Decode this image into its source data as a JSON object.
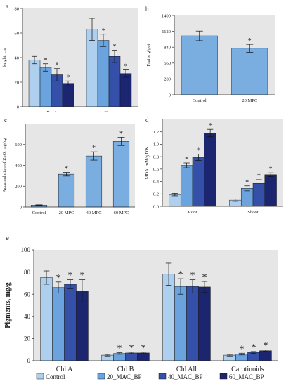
{
  "colors": {
    "control": "#aecfee",
    "mpc20": "#6aa3dd",
    "mpc40": "#3550a8",
    "mpc60": "#1c2670",
    "single": "#7aaee0",
    "axis": "#2a2a2a",
    "plot_bg": "#e6e6e6"
  },
  "chart_data": [
    {
      "panel": "a",
      "type": "bar",
      "ylabel": "lenght, cm",
      "ylim": [
        0,
        80
      ],
      "yticks": [
        0,
        20,
        40,
        60,
        80
      ],
      "categories": [
        "Root",
        "Stem"
      ],
      "series": [
        {
          "values": [
            38,
            63
          ],
          "errors": [
            3,
            9
          ],
          "stars": [
            false,
            false
          ]
        },
        {
          "values": [
            32,
            54
          ],
          "errors": [
            3,
            5
          ],
          "stars": [
            true,
            true
          ]
        },
        {
          "values": [
            26,
            41
          ],
          "errors": [
            5,
            5
          ],
          "stars": [
            true,
            true
          ]
        },
        {
          "values": [
            19,
            27
          ],
          "errors": [
            2,
            3
          ],
          "stars": [
            true,
            true
          ]
        }
      ]
    },
    {
      "panel": "b",
      "type": "bar",
      "ylabel": "Fruits, g/pot",
      "ylim": [
        0,
        1400
      ],
      "yticks": [
        0,
        280,
        560,
        840,
        1120,
        1400
      ],
      "categories": [
        "Control",
        "20 MPC"
      ],
      "values": [
        1040,
        820
      ],
      "errors": [
        85,
        70
      ],
      "stars": [
        false,
        true
      ]
    },
    {
      "panel": "c",
      "type": "bar",
      "ylabel": "Accumulation of ZnO, mg/kg",
      "ylim": [
        0,
        800
      ],
      "yticks": [
        0,
        200,
        400,
        600
      ],
      "categories": [
        "Control",
        "20 MPC",
        "40 MPC",
        "60 MPC"
      ],
      "values": [
        18,
        315,
        490,
        630
      ],
      "errors": [
        3,
        18,
        40,
        40
      ],
      "stars": [
        false,
        true,
        true,
        true
      ]
    },
    {
      "panel": "d",
      "type": "bar",
      "ylabel": "MDA, mM/g DW",
      "ylim": [
        0,
        1.4
      ],
      "yticks": [
        0.0,
        0.2,
        0.4,
        0.6,
        0.8,
        1.0,
        1.2
      ],
      "categories": [
        "Root",
        "Shoot"
      ],
      "series": [
        {
          "values": [
            0.19,
            0.1
          ],
          "errors": [
            0.02,
            0.02
          ],
          "stars": [
            false,
            false
          ]
        },
        {
          "values": [
            0.66,
            0.29
          ],
          "errors": [
            0.04,
            0.04
          ],
          "stars": [
            true,
            true
          ]
        },
        {
          "values": [
            0.79,
            0.37
          ],
          "errors": [
            0.05,
            0.06
          ],
          "stars": [
            true,
            true
          ]
        },
        {
          "values": [
            1.18,
            0.51
          ],
          "errors": [
            0.06,
            0.03
          ],
          "stars": [
            true,
            true
          ]
        }
      ]
    },
    {
      "panel": "e",
      "type": "bar",
      "ylabel": "Pigments, mg/g",
      "ylim": [
        0,
        100
      ],
      "yticks": [
        0,
        20,
        40,
        60,
        80,
        100
      ],
      "categories": [
        "Chl A",
        "Chl B",
        "Chl All",
        "Carotinoids"
      ],
      "series": [
        {
          "name": "Control",
          "values": [
            75,
            5,
            78,
            5
          ],
          "errors": [
            6,
            0.7,
            10,
            0.7
          ],
          "stars": [
            false,
            false,
            false,
            false
          ]
        },
        {
          "name": "20_MAC_BP",
          "values": [
            66,
            6.5,
            67,
            6
          ],
          "errors": [
            5,
            0.7,
            7,
            0.8
          ],
          "stars": [
            true,
            true,
            true,
            true
          ]
        },
        {
          "name": "40_MAC_BP",
          "values": [
            69,
            7,
            67,
            7.5
          ],
          "errors": [
            4,
            0.7,
            6,
            0.8
          ],
          "stars": [
            true,
            true,
            true,
            true
          ]
        },
        {
          "name": "60_MAC_BP",
          "values": [
            63,
            7,
            66.5,
            9
          ],
          "errors": [
            10,
            0.7,
            5,
            0.7
          ],
          "stars": [
            true,
            true,
            true,
            true
          ]
        }
      ]
    }
  ]
}
